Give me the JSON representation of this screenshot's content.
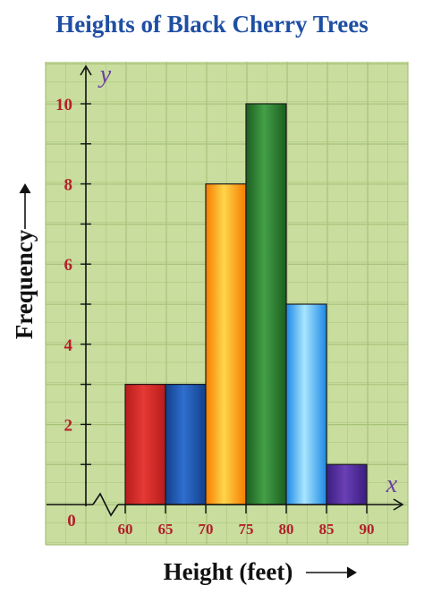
{
  "chart_data": {
    "type": "bar",
    "title": "Heights of Black Cherry Trees",
    "xlabel": "Height (feet)",
    "ylabel": "Frequency",
    "x_axis_letter": "x",
    "y_axis_letter": "y",
    "origin_label": "0",
    "bins": [
      {
        "start": 60,
        "end": 65,
        "value": 3,
        "color_top": "#e53935",
        "color_bottom": "#b71c1c"
      },
      {
        "start": 65,
        "end": 70,
        "value": 3,
        "color_top": "#2f6fd0",
        "color_bottom": "#123f8a"
      },
      {
        "start": 70,
        "end": 75,
        "value": 8,
        "color_top": "#ffd54a",
        "color_bottom": "#f57c00"
      },
      {
        "start": 75,
        "end": 80,
        "value": 10,
        "color_top": "#43a047",
        "color_bottom": "#1b5e20"
      },
      {
        "start": 80,
        "end": 85,
        "value": 5,
        "color_top": "#a8e6ff",
        "color_bottom": "#1e88e5"
      },
      {
        "start": 85,
        "end": 90,
        "value": 1,
        "color_top": "#6a3fb5",
        "color_bottom": "#3a1d80"
      }
    ],
    "x_ticks": [
      "60",
      "65",
      "70",
      "75",
      "80",
      "85",
      "90"
    ],
    "y_ticks": [
      "2",
      "4",
      "6",
      "8",
      "10"
    ],
    "ylim": [
      0,
      10
    ],
    "grid": true,
    "background_color": "#c8dd9e",
    "grid_color": "#a9c27a"
  }
}
